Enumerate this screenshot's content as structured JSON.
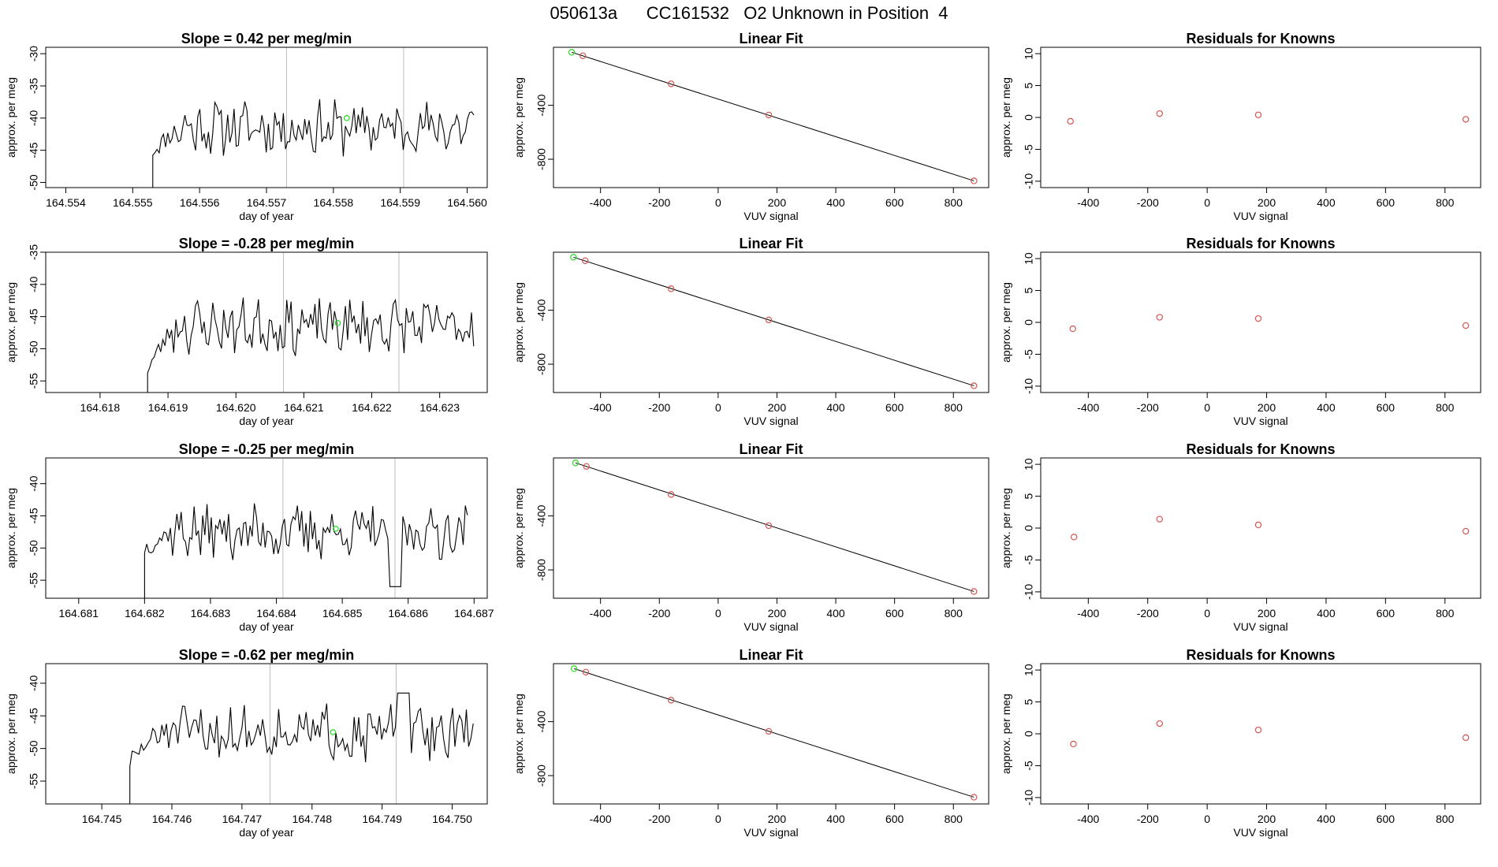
{
  "title": "050613a      CC161532   O2 Unknown in Position  4",
  "colors": {
    "line": "#000000",
    "known": "#d9534f",
    "unknown": "#22dd22",
    "vline": "#bdbdbd"
  },
  "chart_data": [
    {
      "type": "line",
      "row": 1,
      "panel": "time",
      "title": "Slope =  0.42  per meg/min",
      "xlabel": "day of year",
      "ylabel": "approx. per meg",
      "xlim": [
        164.5537,
        164.5603
      ],
      "ylim": [
        -50.8,
        -29
      ],
      "xticks": [
        "164.554",
        "164.555",
        "164.556",
        "164.557",
        "164.558",
        "164.559",
        "164.560"
      ],
      "yticks": [
        "-50",
        "-45",
        "-40",
        "-35",
        "-30"
      ],
      "series_start": 164.5553,
      "series_end": 164.5601,
      "series_n": 150,
      "series_base": -41.5,
      "step_from": -50.8,
      "step_to": -45,
      "seed": 11,
      "vlines": [
        164.5573,
        164.55905
      ],
      "unknown_point": {
        "x": 164.5582,
        "y": -40
      }
    },
    {
      "type": "scatter",
      "row": 1,
      "panel": "fit",
      "title": "Linear Fit",
      "xlabel": "VUV signal",
      "ylabel": "approx. per meg",
      "xlim": [
        -560,
        920
      ],
      "ylim": [
        -1010,
        30
      ],
      "xticks": [
        "-400",
        "-200",
        "0",
        "200",
        "400",
        "600",
        "800"
      ],
      "yticks": [
        "-800",
        "-400"
      ],
      "fit_line": [
        [
          -498,
          -7
        ],
        [
          870,
          -960
        ]
      ],
      "knowns": [
        [
          -460,
          -33
        ],
        [
          -160,
          -241
        ],
        [
          172,
          -472
        ],
        [
          870,
          -960
        ]
      ],
      "unknown": [
        [
          -498,
          -7
        ]
      ]
    },
    {
      "type": "scatter",
      "row": 1,
      "panel": "residuals",
      "title": "Residuals for Knowns",
      "xlabel": "VUV signal",
      "ylabel": "approx. per meg",
      "xlim": [
        -560,
        920
      ],
      "ylim": [
        -11,
        11
      ],
      "xticks": [
        "-400",
        "-200",
        "0",
        "200",
        "400",
        "600",
        "800"
      ],
      "yticks": [
        "-10",
        "-5",
        "0",
        "5",
        "10"
      ],
      "residuals": [
        [
          -460,
          -0.6
        ],
        [
          -160,
          0.6
        ],
        [
          172,
          0.4
        ],
        [
          870,
          -0.3
        ]
      ]
    },
    {
      "type": "line",
      "row": 2,
      "panel": "time",
      "title": "Slope =  -0.28  per meg/min",
      "xlabel": "day of year",
      "ylabel": "approx. per meg",
      "xlim": [
        164.6172,
        164.6237
      ],
      "ylim": [
        -56.8,
        -35
      ],
      "xticks": [
        "164.618",
        "164.619",
        "164.620",
        "164.621",
        "164.622",
        "164.623"
      ],
      "yticks": [
        "-55",
        "-50",
        "-45",
        "-40",
        "-35"
      ],
      "series_start": 164.6187,
      "series_end": 164.6235,
      "series_n": 150,
      "series_base": -46.5,
      "step_from": -56.8,
      "step_to": -53,
      "seed": 23,
      "vlines": [
        164.6207,
        164.6224
      ],
      "unknown_point": {
        "x": 164.6215,
        "y": -46
      }
    },
    {
      "type": "scatter",
      "row": 2,
      "panel": "fit",
      "title": "Linear Fit",
      "xlabel": "VUV signal",
      "ylabel": "approx. per meg",
      "xlim": [
        -560,
        920
      ],
      "ylim": [
        -1010,
        30
      ],
      "xticks": [
        "-400",
        "-200",
        "0",
        "200",
        "400",
        "600",
        "800"
      ],
      "yticks": [
        "-800",
        "-400"
      ],
      "fit_line": [
        [
          -492,
          -7
        ],
        [
          870,
          -960
        ]
      ],
      "knowns": [
        [
          -452,
          -33
        ],
        [
          -160,
          -241
        ],
        [
          172,
          -472
        ],
        [
          870,
          -960
        ]
      ],
      "unknown": [
        [
          -492,
          -7
        ]
      ]
    },
    {
      "type": "scatter",
      "row": 2,
      "panel": "residuals",
      "title": "Residuals for Knowns",
      "xlabel": "VUV signal",
      "ylabel": "approx. per meg",
      "xlim": [
        -560,
        920
      ],
      "ylim": [
        -11,
        11
      ],
      "xticks": [
        "-400",
        "-200",
        "0",
        "200",
        "400",
        "600",
        "800"
      ],
      "yticks": [
        "-10",
        "-5",
        "0",
        "5",
        "10"
      ],
      "residuals": [
        [
          -452,
          -1.0
        ],
        [
          -160,
          0.8
        ],
        [
          172,
          0.6
        ],
        [
          870,
          -0.5
        ]
      ]
    },
    {
      "type": "line",
      "row": 3,
      "panel": "time",
      "title": "Slope =  -0.25  per meg/min",
      "xlabel": "day of year",
      "ylabel": "approx. per meg",
      "xlim": [
        164.6805,
        164.6872
      ],
      "ylim": [
        -57.8,
        -36
      ],
      "xticks": [
        "164.681",
        "164.682",
        "164.683",
        "164.684",
        "164.685",
        "164.686",
        "164.687"
      ],
      "yticks": [
        "-55",
        "-50",
        "-45",
        "-40"
      ],
      "series_start": 164.682,
      "series_end": 164.6869,
      "series_n": 150,
      "series_base": -47.5,
      "step_from": -57.8,
      "step_to": -50,
      "seed": 37,
      "dropout": {
        "from": 164.6857,
        "to": 164.6859,
        "y": -56
      },
      "vlines": [
        164.6841,
        164.6858
      ],
      "unknown_point": {
        "x": 164.6849,
        "y": -47
      }
    },
    {
      "type": "scatter",
      "row": 3,
      "panel": "fit",
      "title": "Linear Fit",
      "xlabel": "VUV signal",
      "ylabel": "approx. per meg",
      "xlim": [
        -560,
        920
      ],
      "ylim": [
        -1010,
        30
      ],
      "xticks": [
        "-400",
        "-200",
        "0",
        "200",
        "400",
        "600",
        "800"
      ],
      "yticks": [
        "-800",
        "-400"
      ],
      "fit_line": [
        [
          -485,
          -7
        ],
        [
          870,
          -960
        ]
      ],
      "knowns": [
        [
          -448,
          -33
        ],
        [
          -160,
          -241
        ],
        [
          172,
          -472
        ],
        [
          870,
          -960
        ]
      ],
      "unknown": [
        [
          -485,
          -7
        ]
      ]
    },
    {
      "type": "scatter",
      "row": 3,
      "panel": "residuals",
      "title": "Residuals for Knowns",
      "xlabel": "VUV signal",
      "ylabel": "approx. per meg",
      "xlim": [
        -560,
        920
      ],
      "ylim": [
        -11,
        11
      ],
      "xticks": [
        "-400",
        "-200",
        "0",
        "200",
        "400",
        "600",
        "800"
      ],
      "yticks": [
        "-10",
        "-5",
        "0",
        "5",
        "10"
      ],
      "residuals": [
        [
          -448,
          -1.4
        ],
        [
          -160,
          1.4
        ],
        [
          172,
          0.5
        ],
        [
          870,
          -0.5
        ]
      ]
    },
    {
      "type": "line",
      "row": 4,
      "panel": "time",
      "title": "Slope =  -0.62  per meg/min",
      "xlabel": "day of year",
      "ylabel": "approx. per meg",
      "xlim": [
        164.7442,
        164.7505
      ],
      "ylim": [
        -58.5,
        -37
      ],
      "xticks": [
        "164.745",
        "164.746",
        "164.747",
        "164.748",
        "164.749",
        "164.750"
      ],
      "yticks": [
        "-55",
        "-50",
        "-45",
        "-40"
      ],
      "series_start": 164.7454,
      "series_end": 164.7503,
      "series_n": 150,
      "series_base": -47.5,
      "step_from": -58.5,
      "step_to": -52,
      "seed": 51,
      "bump": {
        "from": 164.7492,
        "to": 164.7494,
        "y": -41.5
      },
      "vlines": [
        164.7474,
        164.7492
      ],
      "unknown_point": {
        "x": 164.7483,
        "y": -47.5
      }
    },
    {
      "type": "scatter",
      "row": 4,
      "panel": "fit",
      "title": "Linear Fit",
      "xlabel": "VUV signal",
      "ylabel": "approx. per meg",
      "xlim": [
        -560,
        920
      ],
      "ylim": [
        -1010,
        30
      ],
      "xticks": [
        "-400",
        "-200",
        "0",
        "200",
        "400",
        "600",
        "800"
      ],
      "yticks": [
        "-800",
        "-400"
      ],
      "fit_line": [
        [
          -490,
          -7
        ],
        [
          870,
          -960
        ]
      ],
      "knowns": [
        [
          -450,
          -33
        ],
        [
          -160,
          -241
        ],
        [
          172,
          -472
        ],
        [
          870,
          -960
        ]
      ],
      "unknown": [
        [
          -490,
          -7
        ]
      ]
    },
    {
      "type": "scatter",
      "row": 4,
      "panel": "residuals",
      "title": "Residuals for Knowns",
      "xlabel": "VUV signal",
      "ylabel": "approx. per meg",
      "xlim": [
        -560,
        920
      ],
      "ylim": [
        -11,
        11
      ],
      "xticks": [
        "-400",
        "-200",
        "0",
        "200",
        "400",
        "600",
        "800"
      ],
      "yticks": [
        "-10",
        "-5",
        "0",
        "5",
        "10"
      ],
      "residuals": [
        [
          -450,
          -1.6
        ],
        [
          -160,
          1.6
        ],
        [
          172,
          0.6
        ],
        [
          870,
          -0.6
        ]
      ]
    }
  ]
}
